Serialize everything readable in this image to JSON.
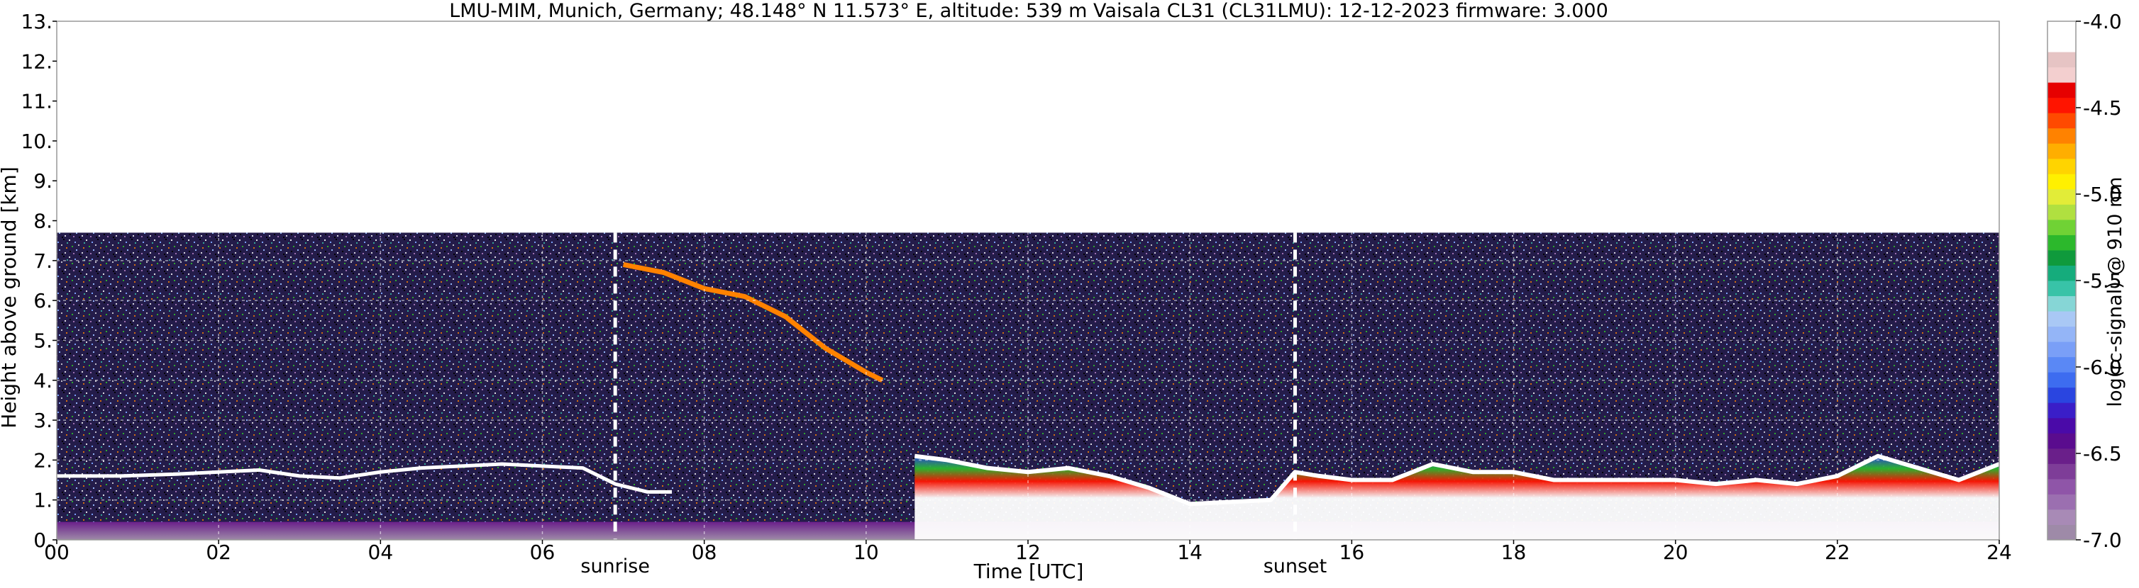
{
  "chart_data": {
    "type": "heatmap",
    "title": "LMU-MIM, Munich, Germany; 48.148° N 11.573° E, altitude: 539 m    Vaisala CL31 (CL31LMU): 12-12-2023    firmware: 3.000",
    "xlabel": "Time [UTC]",
    "ylabel": "Height above ground [km]",
    "colorbar_label": "log(rc-signal) @ 910 nm",
    "xlim": [
      0,
      24
    ],
    "ylim": [
      0,
      13
    ],
    "x_ticks": [
      0,
      2,
      4,
      6,
      8,
      10,
      12,
      14,
      16,
      18,
      20,
      22,
      24
    ],
    "x_tick_labels": [
      "00",
      "02",
      "04",
      "06",
      "08",
      "10",
      "12",
      "14",
      "16",
      "18",
      "20",
      "22",
      "24"
    ],
    "y_ticks": [
      0,
      1,
      2,
      3,
      4,
      5,
      6,
      7,
      8,
      9,
      10,
      11,
      12,
      13
    ],
    "y_tick_labels": [
      "0.",
      "1.",
      "2.",
      "3.",
      "4.",
      "5.",
      "6.",
      "7.",
      "8.",
      "9.",
      "10.",
      "11.",
      "12.",
      "13."
    ],
    "grid": true,
    "data_top_km": 7.7,
    "clim": [
      -7.0,
      -4.0
    ],
    "colorbar_ticks": [
      -7.0,
      -6.5,
      -6.0,
      -5.5,
      -5.0,
      -4.5,
      -4.0
    ],
    "colorbar_tick_labels": [
      "-7.0",
      "-6.5",
      "-6.0",
      "-5.5",
      "-5.0",
      "-4.5",
      "-4.0"
    ],
    "colorbar_colors": [
      "#9e8aa8",
      "#a88ab6",
      "#9b6fb0",
      "#8f55a8",
      "#7e3d98",
      "#6a1f8a",
      "#5a0c8e",
      "#4a0aa8",
      "#3a1ec8",
      "#2a45e0",
      "#3d6cf0",
      "#5a88f5",
      "#7a9ff7",
      "#94b5f7",
      "#a9c8f5",
      "#86d6d6",
      "#38c3a8",
      "#15ac7c",
      "#0f9a3c",
      "#2cb82c",
      "#70d235",
      "#b0e040",
      "#e2ec38",
      "#fff000",
      "#ffd400",
      "#ffae00",
      "#ff8200",
      "#ff4a00",
      "#ff1400",
      "#e60000",
      "#f3cfcf",
      "#e6c4c4",
      "#ffffff",
      "#ffffff"
    ],
    "events": [
      {
        "label": "sunrise",
        "x": 6.9
      },
      {
        "label": "sunset",
        "x": 15.3
      }
    ],
    "series": [
      {
        "name": "",
        "kind": "cloud_base",
        "x": [
          0.0,
          0.8,
          1.5,
          2.0,
          2.5,
          3.0,
          3.5,
          4.0,
          4.5,
          5.0,
          5.5,
          6.0,
          6.5,
          6.9,
          7.3,
          7.6
        ],
        "y": [
          1.6,
          1.6,
          1.65,
          1.7,
          1.75,
          1.6,
          1.55,
          1.7,
          1.8,
          1.85,
          1.9,
          1.85,
          1.8,
          1.4,
          1.2,
          1.2
        ]
      },
      {
        "name": "",
        "kind": "falling_streak",
        "x": [
          7.0,
          7.5,
          8.0,
          8.5,
          9.0,
          9.5,
          10.0,
          10.2
        ],
        "y": [
          6.9,
          6.7,
          6.3,
          6.1,
          5.6,
          4.8,
          4.2,
          4.0
        ]
      },
      {
        "name": "",
        "kind": "boundary_layer_top",
        "x": [
          10.6,
          11.0,
          11.5,
          12.0,
          12.5,
          13.0,
          13.5,
          14.0,
          14.5,
          15.0,
          15.3,
          15.6,
          16.0,
          16.5,
          17.0,
          17.5,
          18.0,
          18.5,
          19.0,
          19.5,
          20.0,
          20.5,
          21.0,
          21.5,
          22.0,
          22.5,
          23.0,
          23.5,
          24.0
        ],
        "y": [
          2.1,
          2.0,
          1.8,
          1.7,
          1.8,
          1.6,
          1.3,
          0.9,
          0.95,
          1.0,
          1.7,
          1.6,
          1.5,
          1.5,
          1.9,
          1.7,
          1.7,
          1.5,
          1.5,
          1.5,
          1.5,
          1.4,
          1.5,
          1.4,
          1.6,
          2.1,
          1.8,
          1.5,
          1.9
        ]
      }
    ]
  }
}
